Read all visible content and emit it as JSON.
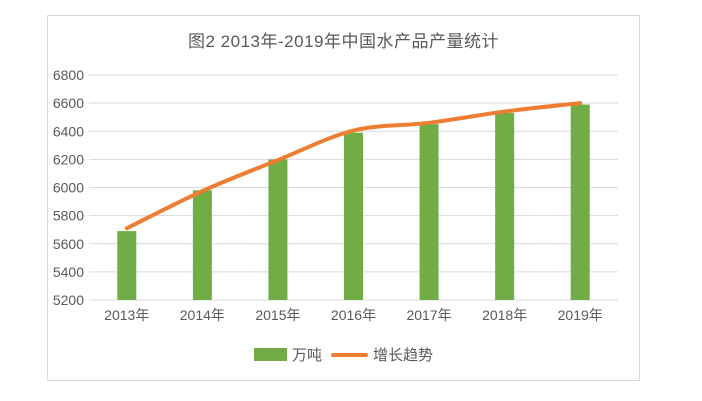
{
  "chart_data": {
    "type": "bar",
    "title": "图2 2013年-2019年中国水产品产量统计",
    "categories": [
      "2013年",
      "2014年",
      "2015年",
      "2016年",
      "2017年",
      "2018年",
      "2019年"
    ],
    "series": [
      {
        "name": "万吨",
        "type": "bar",
        "values": [
          5690,
          5980,
          6200,
          6390,
          6450,
          6530,
          6590
        ]
      },
      {
        "name": "增长趋势",
        "type": "line",
        "values": [
          5710,
          5975,
          6195,
          6405,
          6460,
          6540,
          6600
        ]
      }
    ],
    "xlabel": "",
    "ylabel": "",
    "ylim": [
      5200,
      6800
    ],
    "yticks": [
      5200,
      5400,
      5600,
      5800,
      6000,
      6200,
      6400,
      6600,
      6800
    ],
    "grid": true,
    "legend_position": "bottom",
    "colors": {
      "bar": "#70AD47",
      "line": "#ED7D31",
      "grid": "#D9D9D9",
      "axis": "#D9D9D9",
      "text": "#595959",
      "frame": "#D9D9D9"
    }
  }
}
